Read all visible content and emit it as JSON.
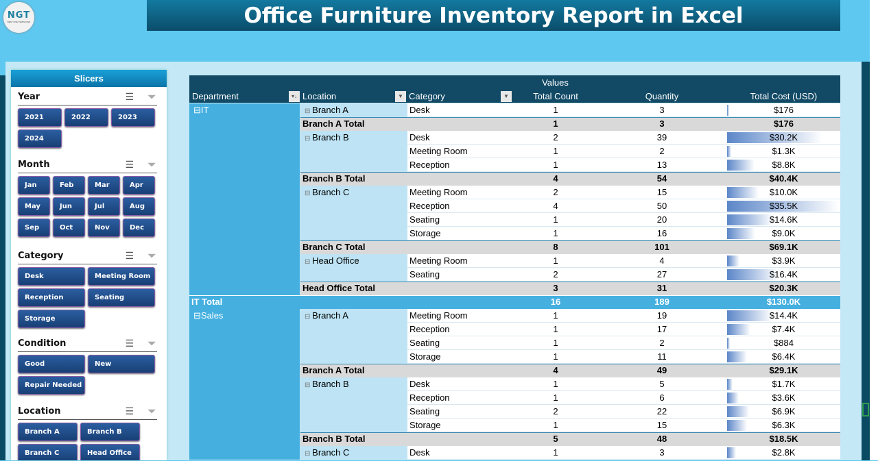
{
  "header": {
    "title": "Office Furniture Inventory Report in Excel",
    "logo_text": "NGT",
    "logo_sub": "BEST ONE TEMPLATES"
  },
  "slicers": {
    "title": "Slicers",
    "sections": [
      {
        "label": "Year",
        "items": [
          "2021",
          "2022",
          "2023",
          "2024"
        ]
      },
      {
        "label": "Month",
        "items": [
          "Jan",
          "Feb",
          "Mar",
          "Apr",
          "May",
          "Jun",
          "Jul",
          "Aug",
          "Sep",
          "Oct",
          "Nov",
          "Dec"
        ]
      },
      {
        "label": "Category",
        "items": [
          "Desk",
          "Meeting Room",
          "Reception",
          "Seating",
          "Storage"
        ]
      },
      {
        "label": "Condition",
        "items": [
          "Good",
          "New",
          "Repair Needed"
        ]
      },
      {
        "label": "Location",
        "items": [
          "Branch A",
          "Branch B",
          "Branch C",
          "Head Office"
        ]
      }
    ],
    "icons": [
      "multi-select-icon",
      "clear-filter-icon"
    ]
  },
  "pivot": {
    "values_label": "Values",
    "headers": {
      "department": "Department",
      "location": "Location",
      "category": "Category",
      "count": "Total Count",
      "qty": "Quantity",
      "cost": "Total Cost (USD)"
    },
    "colors": {
      "header": "#124a66",
      "dept": "#45b0e0",
      "loc": "#bde3f4",
      "subtotal": "#d9d9d9",
      "bar": "#5b86c8"
    },
    "rows": [
      {
        "t": "d",
        "dept": "IT",
        "loc": "Branch A",
        "cat": "Desk",
        "count": "1",
        "qty": "3",
        "cost": "$176",
        "v": 176
      },
      {
        "t": "s",
        "loc": "Branch A Total",
        "count": "1",
        "qty": "3",
        "cost": "$176"
      },
      {
        "t": "d",
        "loc": "Branch B",
        "cat": "Desk",
        "count": "2",
        "qty": "39",
        "cost": "$30.2K",
        "v": 30200
      },
      {
        "t": "d",
        "cat": "Meeting Room",
        "count": "1",
        "qty": "2",
        "cost": "$1.3K",
        "v": 1300
      },
      {
        "t": "d",
        "cat": "Reception",
        "count": "1",
        "qty": "13",
        "cost": "$8.8K",
        "v": 8800
      },
      {
        "t": "s",
        "loc": "Branch B Total",
        "count": "4",
        "qty": "54",
        "cost": "$40.4K"
      },
      {
        "t": "d",
        "loc": "Branch C",
        "cat": "Meeting Room",
        "count": "2",
        "qty": "15",
        "cost": "$10.0K",
        "v": 10000
      },
      {
        "t": "d",
        "cat": "Reception",
        "count": "4",
        "qty": "50",
        "cost": "$35.5K",
        "v": 35500
      },
      {
        "t": "d",
        "cat": "Seating",
        "count": "1",
        "qty": "20",
        "cost": "$14.6K",
        "v": 14600
      },
      {
        "t": "d",
        "cat": "Storage",
        "count": "1",
        "qty": "16",
        "cost": "$9.0K",
        "v": 9000
      },
      {
        "t": "s",
        "loc": "Branch C Total",
        "count": "8",
        "qty": "101",
        "cost": "$69.1K"
      },
      {
        "t": "d",
        "loc": "Head Office",
        "cat": "Meeting Room",
        "count": "1",
        "qty": "4",
        "cost": "$3.9K",
        "v": 3900
      },
      {
        "t": "d",
        "cat": "Seating",
        "count": "2",
        "qty": "27",
        "cost": "$16.4K",
        "v": 16400
      },
      {
        "t": "s",
        "loc": "Head Office Total",
        "count": "3",
        "qty": "31",
        "cost": "$20.3K"
      },
      {
        "t": "g",
        "dept": "IT Total",
        "count": "16",
        "qty": "189",
        "cost": "$130.0K"
      },
      {
        "t": "d",
        "dept": "Sales",
        "loc": "Branch A",
        "cat": "Meeting Room",
        "count": "1",
        "qty": "19",
        "cost": "$14.4K",
        "v": 14400
      },
      {
        "t": "d",
        "cat": "Reception",
        "count": "1",
        "qty": "17",
        "cost": "$7.4K",
        "v": 7400
      },
      {
        "t": "d",
        "cat": "Seating",
        "count": "1",
        "qty": "2",
        "cost": "$884",
        "v": 884
      },
      {
        "t": "d",
        "cat": "Storage",
        "count": "1",
        "qty": "11",
        "cost": "$6.4K",
        "v": 6400
      },
      {
        "t": "s",
        "loc": "Branch A Total",
        "count": "4",
        "qty": "49",
        "cost": "$29.1K"
      },
      {
        "t": "d",
        "loc": "Branch B",
        "cat": "Desk",
        "count": "1",
        "qty": "5",
        "cost": "$1.7K",
        "v": 1700
      },
      {
        "t": "d",
        "cat": "Reception",
        "count": "1",
        "qty": "6",
        "cost": "$3.6K",
        "v": 3600
      },
      {
        "t": "d",
        "cat": "Seating",
        "count": "2",
        "qty": "22",
        "cost": "$6.9K",
        "v": 6900
      },
      {
        "t": "d",
        "cat": "Storage",
        "count": "1",
        "qty": "15",
        "cost": "$6.3K",
        "v": 6300
      },
      {
        "t": "s",
        "loc": "Branch B Total",
        "count": "5",
        "qty": "48",
        "cost": "$18.5K"
      },
      {
        "t": "d",
        "loc": "Branch C",
        "cat": "Desk",
        "count": "1",
        "qty": "3",
        "cost": "$2.8K",
        "v": 2800
      }
    ]
  }
}
